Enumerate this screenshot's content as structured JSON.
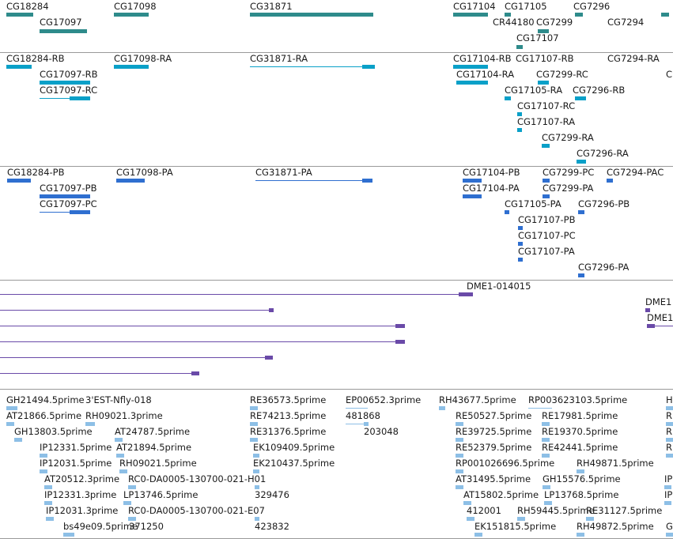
{
  "colors": {
    "gene": "#2e8b8b",
    "transcript": "#0aa0c8",
    "protein": "#2f6fd0",
    "alignment": "#6a4aa8",
    "est": "#8dbfe6",
    "separator": "#9a9a9a"
  },
  "tracks": [
    {
      "name": "gene",
      "features": [
        {
          "label": "CG18284",
          "glyph": "box",
          "strand": "+"
        },
        {
          "label": "CG17097",
          "glyph": "box",
          "strand": "+"
        },
        {
          "label": "CG17098",
          "glyph": "box",
          "strand": "+"
        },
        {
          "label": "CG31871",
          "glyph": "box",
          "strand": "+"
        },
        {
          "label": "CG17104",
          "glyph": "box",
          "strand": "+"
        },
        {
          "label": "CG17105",
          "glyph": "box",
          "strand": "+"
        },
        {
          "label": "CR44180",
          "glyph": "none",
          "strand": ""
        },
        {
          "label": "CG7299",
          "glyph": "box",
          "strand": "-"
        },
        {
          "label": "CG17107",
          "glyph": "box",
          "strand": "+"
        },
        {
          "label": "CG7296",
          "glyph": "box",
          "strand": "-"
        },
        {
          "label": "CG7294",
          "glyph": "none",
          "strand": ""
        }
      ]
    },
    {
      "name": "transcript",
      "features": [
        {
          "label": "CG18284-RB",
          "glyph": "exons",
          "strand": "+"
        },
        {
          "label": "CG17097-RB",
          "glyph": "exons",
          "strand": "+"
        },
        {
          "label": "CG17097-RC",
          "glyph": "exons",
          "strand": "+"
        },
        {
          "label": "CG17098-RA",
          "glyph": "exons",
          "strand": "+"
        },
        {
          "label": "CG31871-RA",
          "glyph": "exons",
          "strand": "+"
        },
        {
          "label": "CG17104-RB",
          "glyph": "exons",
          "strand": "+"
        },
        {
          "label": "CG17104-RA",
          "glyph": "exons",
          "strand": "+"
        },
        {
          "label": "CG17107-RB",
          "glyph": "none",
          "strand": ""
        },
        {
          "label": "CG7294-RA",
          "glyph": "none",
          "strand": ""
        },
        {
          "label": "C",
          "glyph": "none",
          "strand": ""
        },
        {
          "label": "CG7299-RC",
          "glyph": "exons",
          "strand": "-"
        },
        {
          "label": "CG17105-RA",
          "glyph": "exons",
          "strand": "+"
        },
        {
          "label": "CG7296-RB",
          "glyph": "exons",
          "strand": "-"
        },
        {
          "label": "CG17107-RC",
          "glyph": "exons",
          "strand": "+"
        },
        {
          "label": "CG17107-RA",
          "glyph": "exons",
          "strand": "+"
        },
        {
          "label": "CG7299-RA",
          "glyph": "exons",
          "strand": "-"
        },
        {
          "label": "CG7296-RA",
          "glyph": "exons",
          "strand": "-"
        }
      ]
    },
    {
      "name": "protein",
      "features": [
        {
          "label": "CG18284-PB",
          "glyph": "exons",
          "strand": "+"
        },
        {
          "label": "CG17097-PB",
          "glyph": "exons",
          "strand": "+"
        },
        {
          "label": "CG17097-PC",
          "glyph": "exons",
          "strand": "+"
        },
        {
          "label": "CG17098-PA",
          "glyph": "exons",
          "strand": "+"
        },
        {
          "label": "CG31871-PA",
          "glyph": "exons",
          "strand": "+"
        },
        {
          "label": "CG17104-PB",
          "glyph": "exons",
          "strand": "+"
        },
        {
          "label": "CG17104-PA",
          "glyph": "exons",
          "strand": "+"
        },
        {
          "label": "CG7299-PC",
          "glyph": "exons",
          "strand": "-"
        },
        {
          "label": "CG7294-PAC",
          "glyph": "exons",
          "strand": "-"
        },
        {
          "label": "CG7299-PA",
          "glyph": "exons",
          "strand": "-"
        },
        {
          "label": "CG17105-PA",
          "glyph": "exons",
          "strand": "+"
        },
        {
          "label": "CG7296-PB",
          "glyph": "exons",
          "strand": "-"
        },
        {
          "label": "CG17107-PB",
          "glyph": "exons",
          "strand": "+"
        },
        {
          "label": "CG17107-PC",
          "glyph": "exons",
          "strand": "+"
        },
        {
          "label": "CG17107-PA",
          "glyph": "exons",
          "strand": "+"
        },
        {
          "label": "CG7296-PA",
          "glyph": "exons",
          "strand": "-"
        }
      ]
    },
    {
      "name": "alignment",
      "features": [
        {
          "label": "DME1-014015",
          "glyph": "line",
          "strand": "+"
        },
        {
          "label": "DME1",
          "glyph": "none",
          "strand": ""
        },
        {
          "label": "DME1",
          "glyph": "line",
          "strand": "-"
        }
      ]
    },
    {
      "name": "est",
      "features": [
        {
          "label": "GH21494.5prime",
          "glyph": "est"
        },
        {
          "label": "3'EST-Nfly-018",
          "glyph": "none"
        },
        {
          "label": "AT21866.5prime",
          "glyph": "est"
        },
        {
          "label": "RH09021.3prime",
          "glyph": "est"
        },
        {
          "label": "GH13803.5prime",
          "glyph": "est"
        },
        {
          "label": "AT24787.5prime",
          "glyph": "est"
        },
        {
          "label": "IP12331.5prime",
          "glyph": "est"
        },
        {
          "label": "AT21894.5prime",
          "glyph": "est"
        },
        {
          "label": "IP12031.5prime",
          "glyph": "est"
        },
        {
          "label": "RH09021.5prime",
          "glyph": "est"
        },
        {
          "label": "AT20512.3prime",
          "glyph": "est"
        },
        {
          "label": "RC0-DA0005-130700-021-H01",
          "glyph": "est"
        },
        {
          "label": "IP12331.3prime",
          "glyph": "est"
        },
        {
          "label": "LP13746.5prime",
          "glyph": "est"
        },
        {
          "label": "IP12031.3prime",
          "glyph": "est"
        },
        {
          "label": "RC0-DA0005-130700-021-E07",
          "glyph": "est"
        },
        {
          "label": "bs49e09.5prime",
          "glyph": "est"
        },
        {
          "label": "371250",
          "glyph": "none"
        },
        {
          "label": "RE36573.5prime",
          "glyph": "est"
        },
        {
          "label": "RE74213.5prime",
          "glyph": "est"
        },
        {
          "label": "RE31376.5prime",
          "glyph": "est"
        },
        {
          "label": "EK109409.5prime",
          "glyph": "est"
        },
        {
          "label": "EK210437.5prime",
          "glyph": "est"
        },
        {
          "label": "329476",
          "glyph": "est"
        },
        {
          "label": "423832",
          "glyph": "est"
        },
        {
          "label": "EP00652.3prime",
          "glyph": "est"
        },
        {
          "label": "481868",
          "glyph": "est"
        },
        {
          "label": "203048",
          "glyph": "est"
        },
        {
          "label": "RH43677.5prime",
          "glyph": "est"
        },
        {
          "label": "RP003623103.5prime",
          "glyph": "est"
        },
        {
          "label": "RE50527.5prime",
          "glyph": "est"
        },
        {
          "label": "RE17981.5prime",
          "glyph": "est"
        },
        {
          "label": "RE39725.5prime",
          "glyph": "est"
        },
        {
          "label": "RE19370.5prime",
          "glyph": "est"
        },
        {
          "label": "RE52379.5prime",
          "glyph": "est"
        },
        {
          "label": "RE42441.5prime",
          "glyph": "est"
        },
        {
          "label": "RP001026696.5prime",
          "glyph": "est"
        },
        {
          "label": "RH49871.5prime",
          "glyph": "est"
        },
        {
          "label": "AT31495.5prime",
          "glyph": "est"
        },
        {
          "label": "GH15576.5prime",
          "glyph": "est"
        },
        {
          "label": "AT15802.5prime",
          "glyph": "est"
        },
        {
          "label": "LP13768.5prime",
          "glyph": "est"
        },
        {
          "label": "412001",
          "glyph": "est"
        },
        {
          "label": "RH59445.5prime",
          "glyph": "est"
        },
        {
          "label": "RE31127.5prime",
          "glyph": "est"
        },
        {
          "label": "EK151815.5prime",
          "glyph": "est"
        },
        {
          "label": "RH49872.5prime",
          "glyph": "est"
        },
        {
          "label": "H",
          "glyph": "est"
        },
        {
          "label": "R",
          "glyph": "est"
        },
        {
          "label": "R",
          "glyph": "est"
        },
        {
          "label": "R",
          "glyph": "est"
        },
        {
          "label": "IP",
          "glyph": "est"
        },
        {
          "label": "IP",
          "glyph": "est"
        },
        {
          "label": "G",
          "glyph": "est"
        }
      ]
    }
  ]
}
